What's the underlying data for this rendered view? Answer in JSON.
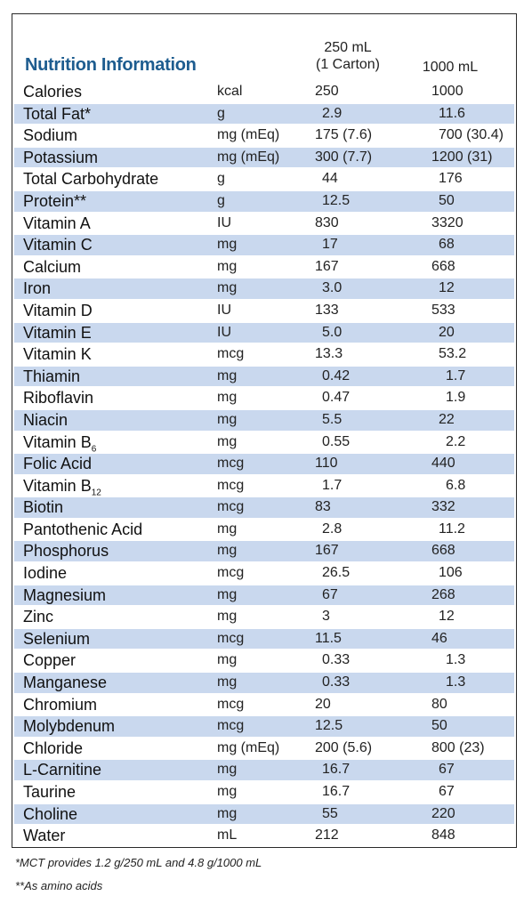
{
  "title": "Nutrition Information",
  "columns": {
    "per_carton_line1": "250 mL",
    "per_carton_line2": "(1 Carton)",
    "per_liter": "1000 mL"
  },
  "rows": [
    {
      "name": "Calories",
      "unit": "kcal",
      "v250": "250",
      "v1000": "1000",
      "shaded": false,
      "off1": 20,
      "off2": 0
    },
    {
      "name": "Total Fat*",
      "unit": "g",
      "v250": "2.9",
      "v1000": "11.6",
      "shaded": true,
      "off1": 28,
      "off2": 8
    },
    {
      "name": "Sodium",
      "unit": "mg (mEq)",
      "v250": "175 (7.6)",
      "v1000": "700 (30.4)",
      "shaded": false,
      "off1": 20,
      "off2": 8
    },
    {
      "name": "Potassium",
      "unit": "mg (mEq)",
      "v250": "300 (7.7)",
      "v1000": "1200 (31)",
      "shaded": true,
      "off1": 20,
      "off2": 0
    },
    {
      "name": "Total Carbohydrate",
      "unit": "g",
      "v250": "44",
      "v1000": "176",
      "shaded": false,
      "off1": 28,
      "off2": 8
    },
    {
      "name": "Protein**",
      "unit": "g",
      "v250": "12.5",
      "v1000": "50",
      "shaded": true,
      "off1": 28,
      "off2": 8
    },
    {
      "name": "Vitamin A",
      "unit": "IU",
      "v250": "830",
      "v1000": "3320",
      "shaded": false,
      "off1": 20,
      "off2": 0
    },
    {
      "name": "Vitamin C",
      "unit": "mg",
      "v250": "17",
      "v1000": "68",
      "shaded": true,
      "off1": 28,
      "off2": 8
    },
    {
      "name": "Calcium",
      "unit": "mg",
      "v250": "167",
      "v1000": "668",
      "shaded": false,
      "off1": 20,
      "off2": 0
    },
    {
      "name": "Iron",
      "unit": "mg",
      "v250": "3.0",
      "v1000": "12",
      "shaded": true,
      "off1": 28,
      "off2": 8
    },
    {
      "name": "Vitamin D",
      "unit": "IU",
      "v250": "133",
      "v1000": "533",
      "shaded": false,
      "off1": 20,
      "off2": 0
    },
    {
      "name": "Vitamin E",
      "unit": "IU",
      "v250": "5.0",
      "v1000": "20",
      "shaded": true,
      "off1": 28,
      "off2": 8
    },
    {
      "name": "Vitamin K",
      "unit": "mcg",
      "v250": "13.3",
      "v1000": "53.2",
      "shaded": false,
      "off1": 20,
      "off2": 8
    },
    {
      "name": "Thiamin",
      "unit": "mg",
      "v250": "0.42",
      "v1000": "1.7",
      "shaded": true,
      "off1": 28,
      "off2": 16
    },
    {
      "name": "Riboflavin",
      "unit": "mg",
      "v250": "0.47",
      "v1000": "1.9",
      "shaded": false,
      "off1": 28,
      "off2": 16
    },
    {
      "name": "Niacin",
      "unit": "mg",
      "v250": "5.5",
      "v1000": "22",
      "shaded": true,
      "off1": 28,
      "off2": 8
    },
    {
      "name": "Vitamin B",
      "sub": "6",
      "unit": "mg",
      "v250": "0.55",
      "v1000": "2.2",
      "shaded": false,
      "off1": 28,
      "off2": 16
    },
    {
      "name": "Folic Acid",
      "unit": "mcg",
      "v250": "110",
      "v1000": "440",
      "shaded": true,
      "off1": 20,
      "off2": 0
    },
    {
      "name": "Vitamin B",
      "sub": "12",
      "unit": "mcg",
      "v250": "1.7",
      "v1000": "6.8",
      "shaded": false,
      "off1": 28,
      "off2": 16
    },
    {
      "name": "Biotin",
      "unit": "mcg",
      "v250": "83",
      "v1000": "332",
      "shaded": true,
      "off1": 20,
      "off2": 0
    },
    {
      "name": "Pantothenic Acid",
      "unit": "mg",
      "v250": "2.8",
      "v1000": "11.2",
      "shaded": false,
      "off1": 28,
      "off2": 8
    },
    {
      "name": "Phosphorus",
      "unit": "mg",
      "v250": "167",
      "v1000": "668",
      "shaded": true,
      "off1": 20,
      "off2": 0
    },
    {
      "name": "Iodine",
      "unit": "mcg",
      "v250": "26.5",
      "v1000": "106",
      "shaded": false,
      "off1": 28,
      "off2": 8
    },
    {
      "name": "Magnesium",
      "unit": "mg",
      "v250": "67",
      "v1000": "268",
      "shaded": true,
      "off1": 28,
      "off2": 0
    },
    {
      "name": "Zinc",
      "unit": "mg",
      "v250": "3",
      "v1000": "12",
      "shaded": false,
      "off1": 28,
      "off2": 8
    },
    {
      "name": "Selenium",
      "unit": "mcg",
      "v250": "11.5",
      "v1000": "46",
      "shaded": true,
      "off1": 20,
      "off2": 0
    },
    {
      "name": "Copper",
      "unit": "mg",
      "v250": "0.33",
      "v1000": "1.3",
      "shaded": false,
      "off1": 28,
      "off2": 16
    },
    {
      "name": "Manganese",
      "unit": "mg",
      "v250": "0.33",
      "v1000": "1.3",
      "shaded": true,
      "off1": 28,
      "off2": 16
    },
    {
      "name": "Chromium",
      "unit": "mcg",
      "v250": "20",
      "v1000": "80",
      "shaded": false,
      "off1": 20,
      "off2": 0
    },
    {
      "name": "Molybdenum",
      "unit": "mcg",
      "v250": "12.5",
      "v1000": "50",
      "shaded": true,
      "off1": 20,
      "off2": 0
    },
    {
      "name": "Chloride",
      "unit": "mg (mEq)",
      "v250": "200 (5.6)",
      "v1000": "800 (23)",
      "shaded": false,
      "off1": 20,
      "off2": 0
    },
    {
      "name": "L-Carnitine",
      "unit": "mg",
      "v250": "16.7",
      "v1000": "67",
      "shaded": true,
      "off1": 28,
      "off2": 8
    },
    {
      "name": "Taurine",
      "unit": "mg",
      "v250": "16.7",
      "v1000": "67",
      "shaded": false,
      "off1": 28,
      "off2": 8
    },
    {
      "name": "Choline",
      "unit": "mg",
      "v250": "55",
      "v1000": "220",
      "shaded": true,
      "off1": 28,
      "off2": 0
    },
    {
      "name": "Water",
      "unit": "mL",
      "v250": "212",
      "v1000": "848",
      "shaded": false,
      "off1": 20,
      "off2": 0
    }
  ],
  "footnotes": [
    "*MCT provides 1.2 g/250 mL and 4.8 g/1000 mL",
    "**As amino acids"
  ]
}
